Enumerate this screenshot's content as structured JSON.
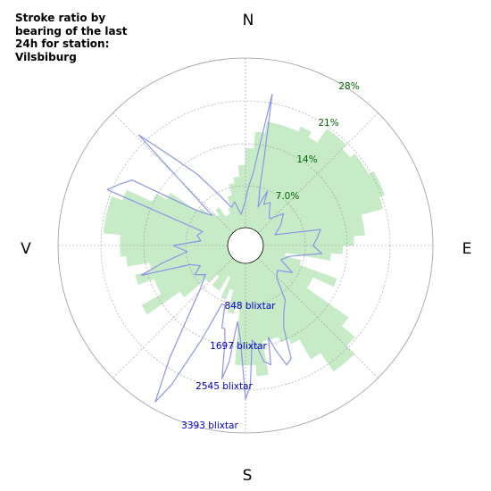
{
  "chart_data": {
    "type": "polar",
    "title": "Stroke ratio by bearing of the last 24h for station: Vilsbiburg",
    "directions": [
      "N",
      "E",
      "S",
      "V"
    ],
    "ratio_ticks": [
      "7.0%",
      "14%",
      "21%",
      "28%"
    ],
    "ratio_max_percent": 30,
    "count_ticks": [
      "848 blixtar",
      "1697 blixtar",
      "2545 blixtar",
      "3393 blixtar"
    ],
    "count_max": 3750,
    "bin_width_degrees": 5,
    "series": [
      {
        "kind": "ratio",
        "unit": "%",
        "values": [
          14,
          17,
          19,
          19,
          18,
          18,
          18,
          22,
          22,
          20,
          13,
          15,
          15,
          9,
          8,
          5,
          4,
          3,
          3,
          4,
          4,
          7,
          14,
          10,
          10,
          19,
          22,
          24,
          24,
          20,
          16,
          15,
          14,
          14,
          20,
          18,
          18,
          8,
          9,
          5,
          7,
          3,
          6,
          6,
          4,
          6,
          11,
          18,
          14,
          14,
          17,
          14,
          18,
          19,
          19,
          22,
          22,
          22,
          20,
          15,
          13,
          7,
          5,
          4,
          5,
          3,
          3,
          4,
          6,
          8,
          9,
          11,
          14,
          14,
          12,
          19,
          19,
          20,
          19,
          18,
          21,
          21,
          22,
          22,
          23,
          23,
          22,
          18,
          18,
          16,
          14,
          12
        ]
      },
      {
        "kind": "count",
        "unit": "blixtar",
        "points": [
          [
            0,
            600
          ],
          [
            2,
            800
          ],
          [
            4,
            1000
          ],
          [
            6,
            1200
          ],
          [
            8,
            1800
          ],
          [
            10,
            3000
          ],
          [
            12,
            1600
          ],
          [
            14,
            900
          ],
          [
            16,
            700
          ],
          [
            18,
            500
          ],
          [
            20,
            700
          ],
          [
            22,
            900
          ],
          [
            24,
            600
          ],
          [
            30,
            700
          ],
          [
            36,
            500
          ],
          [
            42,
            400
          ],
          [
            50,
            700
          ],
          [
            60,
            500
          ],
          [
            70,
            300
          ],
          [
            78,
            1300
          ],
          [
            84,
            1200
          ],
          [
            90,
            1100
          ],
          [
            96,
            1300
          ],
          [
            104,
            600
          ],
          [
            112,
            450
          ],
          [
            120,
            800
          ],
          [
            128,
            500
          ],
          [
            136,
            600
          ],
          [
            144,
            1100
          ],
          [
            150,
            1300
          ],
          [
            155,
            1600
          ],
          [
            158,
            2300
          ],
          [
            161,
            2400
          ],
          [
            164,
            2000
          ],
          [
            166,
            1700
          ],
          [
            168,
            2300
          ],
          [
            171,
            2200
          ],
          [
            174,
            1800
          ],
          [
            176,
            1700
          ],
          [
            178,
            2700
          ],
          [
            180,
            3000
          ],
          [
            183,
            1700
          ],
          [
            186,
            1300
          ],
          [
            188,
            2200
          ],
          [
            190,
            2600
          ],
          [
            192,
            1800
          ],
          [
            194,
            1500
          ],
          [
            196,
            1500
          ],
          [
            199,
            1000
          ],
          [
            202,
            1000
          ],
          [
            205,
            1900
          ],
          [
            208,
            3100
          ],
          [
            210,
            3600
          ],
          [
            214,
            2600
          ],
          [
            220,
            1500
          ],
          [
            226,
            1000
          ],
          [
            234,
            700
          ],
          [
            240,
            900
          ],
          [
            246,
            700
          ],
          [
            251,
            900
          ],
          [
            254,
            2000
          ],
          [
            258,
            1500
          ],
          [
            264,
            900
          ],
          [
            270,
            1200
          ],
          [
            276,
            600
          ],
          [
            282,
            700
          ],
          [
            288,
            600
          ],
          [
            292,
            2900
          ],
          [
            296,
            2700
          ],
          [
            300,
            2500
          ],
          [
            306,
            900
          ],
          [
            312,
            600
          ],
          [
            316,
            3000
          ],
          [
            320,
            2200
          ],
          [
            326,
            1500
          ],
          [
            332,
            900
          ],
          [
            340,
            500
          ],
          [
            346,
            600
          ],
          [
            352,
            300
          ],
          [
            360,
            600
          ]
        ]
      }
    ]
  },
  "colors": {
    "ratio_fill": "#c7ebc7",
    "count_line": "#8e95e6",
    "grid": "#9a9a9a",
    "ratio_text": "#006400",
    "count_text": "#0000cc"
  }
}
